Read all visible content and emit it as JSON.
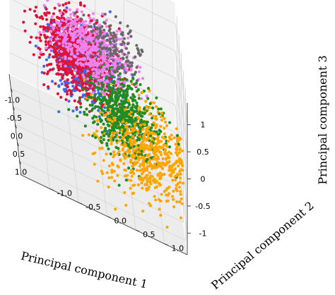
{
  "chart_data": {
    "type": "scatter",
    "projection": "3d",
    "title": "",
    "xlabel": "Principal component 1",
    "ylabel": "Principal component 2",
    "zlabel": "Principal component 3",
    "xlim": [
      -1.4,
      1.4
    ],
    "ylim": [
      -1.5,
      1.4
    ],
    "zlim": [
      -1.4,
      1.4
    ],
    "x_ticks": [
      "-1.0",
      "-0.5",
      "0.0",
      "0.5",
      "1.0"
    ],
    "y_ticks": [
      "1.0",
      "0.5",
      "0.0",
      "-0.5",
      "-1.0"
    ],
    "z_ticks": [
      "1",
      "0.5",
      "0",
      "-0.5",
      "-1"
    ],
    "x_tick_values": [
      -1.0,
      -0.5,
      0.0,
      0.5,
      1.0
    ],
    "y_tick_values": [
      1.0,
      0.5,
      0.0,
      -0.5,
      -1.0
    ],
    "z_tick_values": [
      1,
      0.5,
      0,
      -0.5,
      -1
    ],
    "grid": true,
    "legend": "none",
    "clusters": [
      {
        "color": "#696969",
        "center": [
          0.2,
          0.2,
          1.05
        ],
        "spread": [
          0.28,
          0.3,
          0.18
        ],
        "n_points": 150
      },
      {
        "color": "#4169e1",
        "center": [
          -0.85,
          -0.25,
          -0.25
        ],
        "spread": [
          0.28,
          0.3,
          0.3
        ],
        "n_points": 450
      },
      {
        "color": "#ee82ee",
        "center": [
          -0.35,
          -0.1,
          0.45
        ],
        "spread": [
          0.32,
          0.32,
          0.2
        ],
        "n_points": 700
      },
      {
        "color": "#228b22",
        "center": [
          0.3,
          0.35,
          -0.1
        ],
        "spread": [
          0.28,
          0.32,
          0.28
        ],
        "n_points": 600
      },
      {
        "color": "#ffa500",
        "center": [
          0.55,
          0.75,
          -0.45
        ],
        "spread": [
          0.35,
          0.35,
          0.35
        ],
        "n_points": 650
      },
      {
        "color": "#dc143c",
        "center": [
          -0.65,
          -0.35,
          0.05
        ],
        "spread": [
          0.3,
          0.3,
          0.28
        ],
        "n_points": 1100
      }
    ]
  }
}
